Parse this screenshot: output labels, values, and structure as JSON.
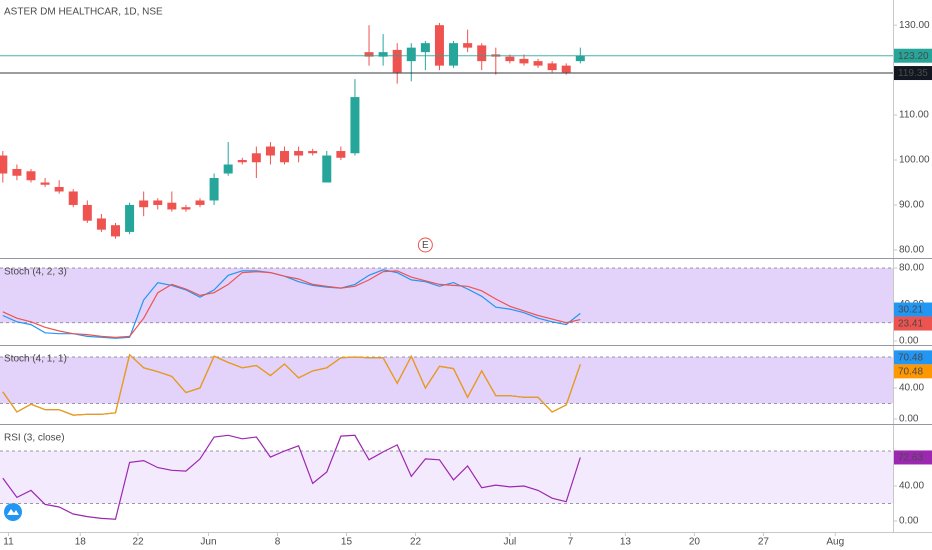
{
  "chart_data": [
    {
      "type": "candlestick",
      "title": "ASTER DM HEALTHCAR, 1D, NSE",
      "categories": [
        null,
        null,
        null,
        null,
        null,
        null,
        null,
        null,
        null,
        null,
        null,
        null,
        null,
        null,
        null,
        null,
        null,
        null,
        null,
        null,
        null,
        null,
        null,
        null,
        null,
        null,
        null,
        null,
        null,
        null,
        null,
        null,
        null,
        null,
        null,
        null,
        null,
        null,
        null,
        null,
        null,
        null
      ],
      "series": [
        {
          "open": [
            101,
            98,
            97.5,
            95,
            94,
            93,
            90,
            87,
            85.5,
            84,
            91,
            91,
            90.5,
            89.5,
            91,
            91,
            97,
            100,
            101.5,
            103,
            102,
            102,
            102,
            95,
            102,
            101.5,
            124,
            123,
            124.5,
            122,
            124,
            130,
            121,
            126,
            125.5,
            123.5,
            123,
            122.5,
            122,
            121.5,
            121,
            122
          ],
          "high": [
            102,
            99,
            98,
            96,
            95.5,
            93.5,
            91,
            88,
            86,
            90.5,
            93,
            91.5,
            93,
            90,
            91.5,
            97,
            104,
            100.5,
            103,
            104,
            103,
            103,
            102.5,
            102,
            103,
            118,
            130,
            128,
            126,
            126,
            126.5,
            130.5,
            126.5,
            129,
            126,
            125,
            123.5,
            123.5,
            122.5,
            122,
            121.5,
            125
          ],
          "low": [
            95,
            95.5,
            95,
            94,
            92.5,
            89.5,
            86,
            84,
            82.5,
            83.5,
            87.5,
            89,
            88.5,
            88.5,
            89.5,
            90,
            96.5,
            99,
            96,
            99,
            99,
            99.5,
            101,
            95,
            100,
            101,
            121,
            121,
            117,
            117.5,
            120,
            120,
            120.5,
            124,
            120,
            119,
            121.5,
            121,
            120.5,
            119.5,
            119,
            121.5
          ],
          "close": [
            97,
            96.5,
            95.5,
            94.5,
            93,
            90,
            86.5,
            84.5,
            83,
            90,
            89.5,
            90,
            89,
            89,
            90,
            96,
            99,
            99.5,
            99.5,
            101,
            99.5,
            101,
            101.5,
            101,
            100.5,
            114,
            123,
            124,
            119.5,
            125,
            126,
            121,
            126,
            125,
            122,
            123,
            122,
            121.5,
            121,
            120,
            119.5,
            123.2
          ]
        }
      ],
      "up_color": "#26a69a",
      "down_color": "#ef5350",
      "price_lines": [
        {
          "value": 123.2,
          "label": "123.20",
          "color": "#26a69a"
        },
        {
          "value": 119.35,
          "label": "119.35",
          "color": "#131722"
        }
      ],
      "events": [
        {
          "x": 30,
          "label": "E"
        }
      ],
      "xlim": [
        -0.2,
        63.2
      ],
      "ylim": [
        78.2,
        135.6
      ],
      "yticks": [
        {
          "value": 80,
          "label": "80.00"
        },
        {
          "value": 90,
          "label": "90.00"
        },
        {
          "value": 100,
          "label": "100.00"
        },
        {
          "value": 110,
          "label": "110.00"
        },
        {
          "value": 130,
          "label": "130.00"
        }
      ]
    },
    {
      "type": "line",
      "title": "Stoch (4, 2, 3)",
      "series": [
        {
          "color": "#2196f3",
          "values": [
            28,
            21,
            18,
            9,
            8,
            8,
            5,
            4,
            3,
            4,
            45,
            64,
            61,
            56,
            48,
            56,
            72,
            77,
            77,
            75,
            71,
            65,
            61,
            59,
            58,
            62,
            72,
            78,
            75,
            67,
            65,
            60,
            64,
            57,
            49,
            37,
            35,
            31,
            25,
            21,
            18,
            30.21
          ],
          "last_label": "30.21"
        },
        {
          "color": "#ef5350",
          "values": [
            32,
            25,
            21,
            15,
            11,
            8,
            7,
            5,
            4,
            5,
            25,
            53,
            62,
            57,
            50,
            53,
            62,
            75,
            76,
            75,
            71,
            68,
            62,
            60,
            58,
            60,
            67,
            76,
            77,
            70,
            66,
            62,
            61,
            60,
            55,
            46,
            38,
            33,
            28,
            24,
            20,
            23.41
          ],
          "last_label": "23.41"
        }
      ],
      "band": [
        20,
        80
      ],
      "band_color": "#e3d3fb",
      "xlim": [
        -0.2,
        63.2
      ],
      "ylim": [
        -4.4,
        88.8
      ],
      "yticks": [
        {
          "value": 0,
          "label": "0.00"
        },
        {
          "value": 40,
          "label": "40.00"
        },
        {
          "value": 80,
          "label": "80.00"
        }
      ]
    },
    {
      "type": "line",
      "title": "Stoch (4, 1, 1)",
      "series": [
        {
          "color": "#2196f3",
          "values": [
            35,
            9,
            19,
            12,
            12,
            5,
            6,
            6,
            8,
            83,
            66,
            61,
            55,
            34,
            40,
            81,
            73,
            66,
            69,
            56,
            71,
            53,
            62,
            66,
            79,
            80,
            79,
            79,
            46,
            81,
            40,
            68,
            65,
            28,
            62,
            30,
            30,
            28,
            28,
            9,
            18,
            70.48
          ],
          "last_label": "70.48"
        },
        {
          "color": "#ff9800",
          "values": [
            35,
            9,
            19,
            12,
            12,
            5,
            6,
            6,
            8,
            83,
            66,
            61,
            55,
            34,
            40,
            81,
            73,
            66,
            69,
            56,
            71,
            53,
            62,
            66,
            79,
            80,
            79,
            79,
            46,
            81,
            40,
            68,
            65,
            28,
            62,
            30,
            30,
            28,
            28,
            9,
            18,
            70.48
          ],
          "last_label": "70.48"
        }
      ],
      "band": [
        20,
        80
      ],
      "band_color": "#e3d3fb",
      "xlim": [
        -0.2,
        63.2
      ],
      "ylim": [
        -6.5,
        92.9
      ],
      "yticks": [
        {
          "value": 0,
          "label": "0.00"
        },
        {
          "value": 40,
          "label": "40.00"
        }
      ]
    },
    {
      "type": "line",
      "title": "RSI (3, close)",
      "series": [
        {
          "color": "#9c27b0",
          "values": [
            49,
            27,
            35,
            19,
            16,
            8,
            5,
            3,
            2,
            67,
            69,
            61,
            58,
            57,
            71,
            96,
            98,
            94,
            96,
            73,
            80,
            86,
            43,
            56,
            97,
            98,
            70,
            79,
            87,
            51,
            71,
            70,
            47,
            63,
            38,
            41,
            39,
            40,
            35,
            26,
            22,
            72.63
          ],
          "last_label": "72.63"
        }
      ],
      "band": [
        20,
        80
      ],
      "band_color": "#f3ebfd",
      "xlim": [
        -0.2,
        63.2
      ],
      "ylim": [
        -12.6,
        108.6
      ],
      "yticks": [
        {
          "value": 0,
          "label": "0.00"
        },
        {
          "value": 40,
          "label": "40.00"
        }
      ],
      "xticks": [
        {
          "value": 0.4,
          "label": "11"
        },
        {
          "value": 5.5,
          "label": "18"
        },
        {
          "value": 9.6,
          "label": "22"
        },
        {
          "value": 14.6,
          "label": "Jun"
        },
        {
          "value": 19.5,
          "label": "8"
        },
        {
          "value": 24.4,
          "label": "15"
        },
        {
          "value": 29.3,
          "label": "22"
        },
        {
          "value": 36,
          "label": "Jul"
        },
        {
          "value": 40.3,
          "label": "7"
        },
        {
          "value": 44.2,
          "label": "13"
        },
        {
          "value": 49.1,
          "label": "20"
        },
        {
          "value": 54,
          "label": "27"
        },
        {
          "value": 59.1,
          "label": "Aug"
        }
      ]
    }
  ]
}
